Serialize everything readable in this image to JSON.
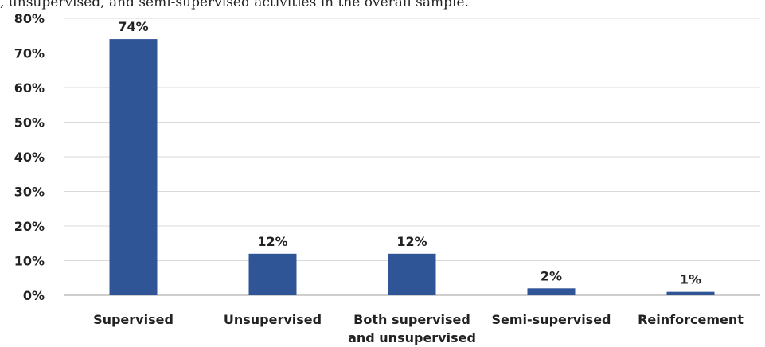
{
  "caption": ", unsupervised, and semi-supervised activities in the overall sample.",
  "chart_data": {
    "type": "bar",
    "title": "",
    "xlabel": "",
    "ylabel": "",
    "categories": [
      "Supervised",
      "Unsupervised",
      "Both supervised and unsupervised",
      "Semi-supervised",
      "Reinforcement"
    ],
    "category_lines": [
      [
        "Supervised"
      ],
      [
        "Unsupervised"
      ],
      [
        "Both supervised",
        "and unsupervised"
      ],
      [
        "Semi-supervised"
      ],
      [
        "Reinforcement"
      ]
    ],
    "values": [
      74,
      12,
      12,
      2,
      1
    ],
    "data_labels": [
      "74%",
      "12%",
      "12%",
      "2%",
      "1%"
    ],
    "ylim": [
      0,
      80
    ],
    "yticks": [
      0,
      10,
      20,
      30,
      40,
      50,
      60,
      70,
      80
    ],
    "ytick_labels": [
      "0%",
      "10%",
      "20%",
      "30%",
      "40%",
      "50%",
      "60%",
      "70%",
      "80%"
    ],
    "grid": true,
    "legend": "none",
    "bar_color": "#2f5597",
    "grid_color": "#d9d9d9"
  }
}
